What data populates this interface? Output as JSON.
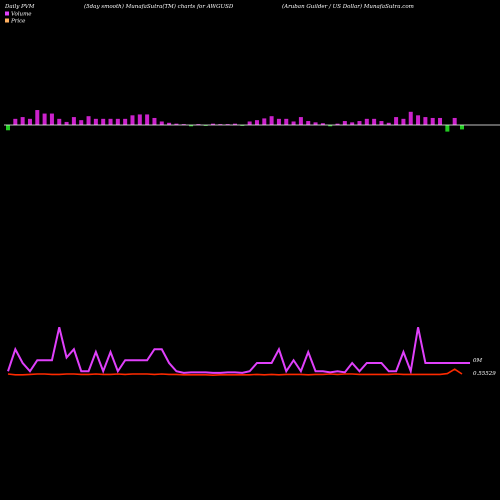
{
  "chart_data": {
    "type": "bar+line",
    "header": {
      "left": "Daily PVM",
      "middle": "(5day smooth) MunafaSutra(TM) charts for AWGUSD",
      "right": "(Aruban Guilder / US Dollar) MunafaSutra.com"
    },
    "legend": [
      {
        "name": "Volume",
        "color": "#e040fb"
      },
      {
        "name": "Price",
        "color": "#ffb060"
      }
    ],
    "colors": {
      "background": "#000000",
      "baseline": "#ffffff",
      "bar_up": "#cc22cc",
      "bar_down": "#22cc22",
      "volume_line": "#e040fb",
      "price_line": "#ff2a00"
    },
    "volume_label": "0M",
    "price_label": "0.55529",
    "pvm_bars": [
      -1.2,
      1.4,
      1.8,
      1.4,
      3.4,
      2.6,
      2.6,
      1.4,
      0.7,
      1.8,
      1.1,
      2.0,
      1.4,
      1.4,
      1.4,
      1.4,
      1.4,
      2.2,
      2.4,
      2.4,
      1.6,
      0.8,
      0.5,
      0.3,
      0.2,
      -0.3,
      0.2,
      -0.2,
      0.3,
      0.2,
      0.2,
      0.3,
      -0.2,
      0.8,
      1.1,
      1.5,
      2.0,
      1.4,
      1.4,
      0.8,
      1.8,
      0.9,
      0.6,
      0.4,
      -0.3,
      0.3,
      0.9,
      0.6,
      0.9,
      1.4,
      1.4,
      0.9,
      0.5,
      1.8,
      1.4,
      3.0,
      2.2,
      1.8,
      1.6,
      1.6,
      -1.5,
      1.6,
      -1.0
    ],
    "volume": [
      0.05,
      0.45,
      0.2,
      0.05,
      0.25,
      0.25,
      0.25,
      0.85,
      0.3,
      0.45,
      0.05,
      0.05,
      0.4,
      0.05,
      0.4,
      0.05,
      0.25,
      0.25,
      0.25,
      0.25,
      0.45,
      0.45,
      0.2,
      0.05,
      0.02,
      0.03,
      0.03,
      0.03,
      0.02,
      0.02,
      0.03,
      0.03,
      0.02,
      0.05,
      0.2,
      0.2,
      0.2,
      0.45,
      0.05,
      0.25,
      0.05,
      0.4,
      0.05,
      0.05,
      0.03,
      0.05,
      0.03,
      0.2,
      0.05,
      0.2,
      0.2,
      0.2,
      0.05,
      0.05,
      0.4,
      0.05,
      0.85,
      0.2,
      0.2,
      0.2,
      0.2,
      0.2,
      0.2
    ],
    "price": [
      0.05,
      0.03,
      0.03,
      0.04,
      0.05,
      0.05,
      0.04,
      0.04,
      0.05,
      0.05,
      0.04,
      0.04,
      0.05,
      0.04,
      0.04,
      0.05,
      0.04,
      0.05,
      0.05,
      0.05,
      0.04,
      0.05,
      0.04,
      0.04,
      0.03,
      0.03,
      0.03,
      0.03,
      0.02,
      0.03,
      0.03,
      0.03,
      0.03,
      0.03,
      0.04,
      0.03,
      0.04,
      0.03,
      0.04,
      0.04,
      0.04,
      0.03,
      0.04,
      0.04,
      0.05,
      0.04,
      0.05,
      0.05,
      0.04,
      0.04,
      0.04,
      0.04,
      0.04,
      0.05,
      0.04,
      0.04,
      0.04,
      0.04,
      0.04,
      0.04,
      0.06,
      0.17,
      0.05
    ]
  }
}
